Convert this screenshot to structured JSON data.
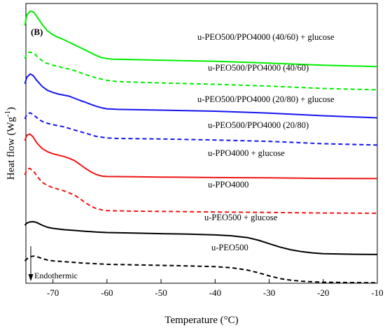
{
  "chart_data": {
    "type": "line",
    "panel_label": "(B)",
    "xlabel": "Temperature (°C)",
    "ylabel_main": "Heat flow (Wg",
    "ylabel_sup": "-1",
    "ylabel_close": ")",
    "xlim": [
      -75,
      -10
    ],
    "xticks": [
      -70,
      -60,
      -50,
      -40,
      -30,
      -20,
      -10
    ],
    "xtick_labels": [
      "-70",
      "-60",
      "-50",
      "-40",
      "-30",
      "-20",
      "-10"
    ],
    "y_ticks_shown": false,
    "annotation": "Endothermic",
    "series": [
      {
        "name": "u-PEO500/PPO4000 (40/60) + glucose",
        "color": "#00ee00",
        "dash": "solid",
        "points": [
          [
            -75.2,
            0.935
          ],
          [
            -74.8,
            0.975
          ],
          [
            -74.2,
            0.99
          ],
          [
            -73.5,
            0.985
          ],
          [
            -73,
            0.97
          ],
          [
            -72,
            0.94
          ],
          [
            -71,
            0.915
          ],
          [
            -70,
            0.9
          ],
          [
            -69,
            0.89
          ],
          [
            -68,
            0.882
          ],
          [
            -67,
            0.872
          ],
          [
            -66,
            0.862
          ],
          [
            -65,
            0.852
          ],
          [
            -64,
            0.842
          ],
          [
            -63,
            0.832
          ],
          [
            -62,
            0.822
          ],
          [
            -61,
            0.814
          ],
          [
            -60,
            0.81
          ],
          [
            -59,
            0.808
          ],
          [
            -55,
            0.806
          ],
          [
            -50,
            0.804
          ],
          [
            -40,
            0.8
          ],
          [
            -30,
            0.793
          ],
          [
            -20,
            0.785
          ],
          [
            -10,
            0.78
          ]
        ]
      },
      {
        "name": "u-PEO500/PPO4000 (40/60)",
        "color": "#00ee00",
        "dash": "dashed",
        "points": [
          [
            -75.2,
            0.81
          ],
          [
            -74.8,
            0.83
          ],
          [
            -74.3,
            0.835
          ],
          [
            -73.5,
            0.83
          ],
          [
            -72.5,
            0.81
          ],
          [
            -71.5,
            0.795
          ],
          [
            -70,
            0.785
          ],
          [
            -68,
            0.775
          ],
          [
            -66,
            0.765
          ],
          [
            -64,
            0.75
          ],
          [
            -62,
            0.737
          ],
          [
            -60,
            0.728
          ],
          [
            -58,
            0.723
          ],
          [
            -50,
            0.718
          ],
          [
            -40,
            0.713
          ],
          [
            -30,
            0.706
          ],
          [
            -20,
            0.697
          ],
          [
            -10,
            0.692
          ]
        ]
      },
      {
        "name": "u-PEO500/PPO4000 (20/80) + glucose",
        "color": "#1515ee",
        "dash": "solid",
        "points": [
          [
            -75.2,
            0.715
          ],
          [
            -74.8,
            0.74
          ],
          [
            -74.2,
            0.752
          ],
          [
            -73.6,
            0.745
          ],
          [
            -73,
            0.728
          ],
          [
            -72,
            0.705
          ],
          [
            -71,
            0.69
          ],
          [
            -70,
            0.682
          ],
          [
            -69,
            0.676
          ],
          [
            -68,
            0.672
          ],
          [
            -67,
            0.668
          ],
          [
            -66,
            0.66
          ],
          [
            -65,
            0.652
          ],
          [
            -64,
            0.645
          ],
          [
            -63,
            0.637
          ],
          [
            -62,
            0.63
          ],
          [
            -61,
            0.624
          ],
          [
            -60,
            0.62
          ],
          [
            -58,
            0.618
          ],
          [
            -50,
            0.615
          ],
          [
            -40,
            0.611
          ],
          [
            -30,
            0.604
          ],
          [
            -20,
            0.594
          ],
          [
            -10,
            0.586
          ]
        ]
      },
      {
        "name": "u-PEO500/PPO4000 (20/80)",
        "color": "#1515ee",
        "dash": "dashed",
        "points": [
          [
            -75.2,
            0.582
          ],
          [
            -74.8,
            0.6
          ],
          [
            -74.2,
            0.605
          ],
          [
            -73.5,
            0.596
          ],
          [
            -72.5,
            0.578
          ],
          [
            -71.5,
            0.568
          ],
          [
            -70,
            0.56
          ],
          [
            -68,
            0.552
          ],
          [
            -66,
            0.54
          ],
          [
            -64,
            0.528
          ],
          [
            -62,
            0.516
          ],
          [
            -60,
            0.51
          ],
          [
            -58,
            0.508
          ],
          [
            -50,
            0.506
          ],
          [
            -40,
            0.502
          ],
          [
            -30,
            0.497
          ],
          [
            -20,
            0.488
          ],
          [
            -10,
            0.483
          ]
        ]
      },
      {
        "name": "u-PPO4000 + glucose",
        "color": "#ee1515",
        "dash": "solid",
        "points": [
          [
            -75.2,
            0.5
          ],
          [
            -74.8,
            0.52
          ],
          [
            -74.3,
            0.525
          ],
          [
            -73.7,
            0.515
          ],
          [
            -73,
            0.492
          ],
          [
            -72,
            0.47
          ],
          [
            -71,
            0.458
          ],
          [
            -70,
            0.45
          ],
          [
            -69,
            0.445
          ],
          [
            -68,
            0.44
          ],
          [
            -67,
            0.433
          ],
          [
            -66,
            0.424
          ],
          [
            -65,
            0.41
          ],
          [
            -64,
            0.395
          ],
          [
            -63,
            0.382
          ],
          [
            -62,
            0.372
          ],
          [
            -61,
            0.366
          ],
          [
            -60,
            0.364
          ],
          [
            -55,
            0.363
          ],
          [
            -50,
            0.362
          ],
          [
            -40,
            0.36
          ],
          [
            -30,
            0.359
          ],
          [
            -20,
            0.357
          ],
          [
            -10,
            0.356
          ]
        ]
      },
      {
        "name": "u-PPO4000",
        "color": "#ee1515",
        "dash": "dashed",
        "points": [
          [
            -75.2,
            0.37
          ],
          [
            -74.8,
            0.39
          ],
          [
            -74.3,
            0.395
          ],
          [
            -73.6,
            0.385
          ],
          [
            -72.8,
            0.362
          ],
          [
            -72,
            0.342
          ],
          [
            -71,
            0.33
          ],
          [
            -70,
            0.322
          ],
          [
            -69,
            0.316
          ],
          [
            -68,
            0.31
          ],
          [
            -67,
            0.302
          ],
          [
            -66,
            0.294
          ],
          [
            -65,
            0.28
          ],
          [
            -64,
            0.265
          ],
          [
            -63,
            0.252
          ],
          [
            -62,
            0.243
          ],
          [
            -61,
            0.238
          ],
          [
            -60,
            0.235
          ],
          [
            -55,
            0.233
          ],
          [
            -50,
            0.232
          ],
          [
            -40,
            0.23
          ],
          [
            -30,
            0.228
          ],
          [
            -20,
            0.226
          ],
          [
            -10,
            0.225
          ]
        ]
      },
      {
        "name": "u-PEO500 + glucose",
        "color": "#000000",
        "dash": "solid",
        "points": [
          [
            -75.2,
            0.18
          ],
          [
            -74.8,
            0.188
          ],
          [
            -74.3,
            0.192
          ],
          [
            -73.6,
            0.193
          ],
          [
            -73,
            0.19
          ],
          [
            -72,
            0.18
          ],
          [
            -71,
            0.172
          ],
          [
            -70,
            0.168
          ],
          [
            -68,
            0.163
          ],
          [
            -66,
            0.16
          ],
          [
            -64,
            0.157
          ],
          [
            -62,
            0.154
          ],
          [
            -60,
            0.152
          ],
          [
            -55,
            0.15
          ],
          [
            -50,
            0.148
          ],
          [
            -45,
            0.146
          ],
          [
            -40,
            0.143
          ],
          [
            -37,
            0.14
          ],
          [
            -34,
            0.133
          ],
          [
            -32,
            0.123
          ],
          [
            -30,
            0.11
          ],
          [
            -28,
            0.097
          ],
          [
            -26,
            0.087
          ],
          [
            -24,
            0.08
          ],
          [
            -22,
            0.075
          ],
          [
            -20,
            0.072
          ],
          [
            -15,
            0.07
          ],
          [
            -10,
            0.069
          ]
        ]
      },
      {
        "name": "u-PEO500",
        "color": "#000000",
        "dash": "dashed",
        "points": [
          [
            -75.2,
            0.045
          ],
          [
            -74.8,
            0.052
          ],
          [
            -74.3,
            0.06
          ],
          [
            -73.6,
            0.063
          ],
          [
            -73,
            0.061
          ],
          [
            -72,
            0.054
          ],
          [
            -71,
            0.048
          ],
          [
            -70,
            0.045
          ],
          [
            -68,
            0.042
          ],
          [
            -66,
            0.039
          ],
          [
            -64,
            0.036
          ],
          [
            -62,
            0.034
          ],
          [
            -60,
            0.032
          ],
          [
            -55,
            0.03
          ],
          [
            -50,
            0.028
          ],
          [
            -45,
            0.026
          ],
          [
            -40,
            0.023
          ],
          [
            -37,
            0.019
          ],
          [
            -34,
            0.01
          ],
          [
            -32,
            0.0
          ],
          [
            -30,
            -0.012
          ],
          [
            -28,
            -0.022
          ],
          [
            -26,
            -0.028
          ],
          [
            -24,
            -0.032
          ],
          [
            -22,
            -0.034
          ],
          [
            -20,
            -0.036
          ],
          [
            -15,
            -0.037
          ],
          [
            -10,
            -0.038
          ]
        ]
      }
    ]
  }
}
